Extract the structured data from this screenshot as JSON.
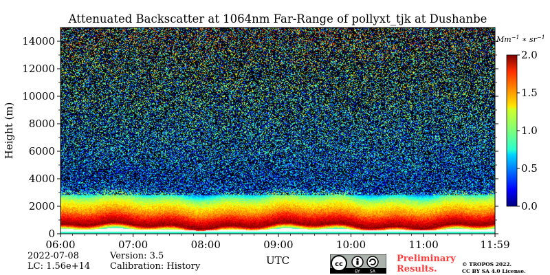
{
  "chart_data": {
    "type": "heatmap",
    "title": "Attenuated Backscatter at 1064nm Far-Range of pollyxt_tjk at Dushanbe",
    "xlabel": "UTC",
    "ylabel": "Height (m)",
    "x_ticks": [
      "06:00",
      "07:00",
      "08:00",
      "09:00",
      "10:00",
      "11:00",
      "11:59"
    ],
    "x_range_hours": [
      6.0,
      11.983
    ],
    "y_ticks": [
      0,
      2000,
      4000,
      6000,
      8000,
      10000,
      12000,
      14000
    ],
    "ylim": [
      0,
      15000
    ],
    "colorbar": {
      "unit_label": "Mm^-1 * sr^-1",
      "ticks": [
        "0.0",
        "0.5",
        "1.0",
        "1.5",
        "2.0"
      ],
      "range": [
        0.0,
        2.0
      ],
      "colormap": "jet"
    },
    "profile_description_by_height_m": [
      {
        "height": 250,
        "value": 0.9
      },
      {
        "height": 600,
        "value": 2.0
      },
      {
        "height": 1000,
        "value": 1.8
      },
      {
        "height": 1500,
        "value": 1.5
      },
      {
        "height": 2000,
        "value": 1.3
      },
      {
        "height": 2600,
        "value": 1.0
      },
      {
        "height": 3200,
        "value": 0.35
      },
      {
        "height": 4000,
        "value": 0.3
      },
      {
        "height": 6000,
        "value": 0.45
      },
      {
        "height": 9000,
        "value": 0.55
      },
      {
        "height": 12000,
        "value": 0.7
      },
      {
        "height": 14500,
        "value": 0.9
      }
    ]
  },
  "footer": {
    "date": "2022-07-08",
    "lc": "LC: 1.56e+14",
    "version": "Version: 3.5",
    "calibration": "Calibration: History",
    "preliminary_line1": "Preliminary",
    "preliminary_line2": "Results.",
    "copyright_line1": "© TROPOS 2022.",
    "copyright_line2": "CC BY SA 4.0 License.",
    "cc_badge_text": [
      "BY",
      "SA"
    ]
  },
  "colors": {
    "background": "#ffffff",
    "plot_background": "#000000",
    "preliminary_text": "#ff3b3b"
  }
}
